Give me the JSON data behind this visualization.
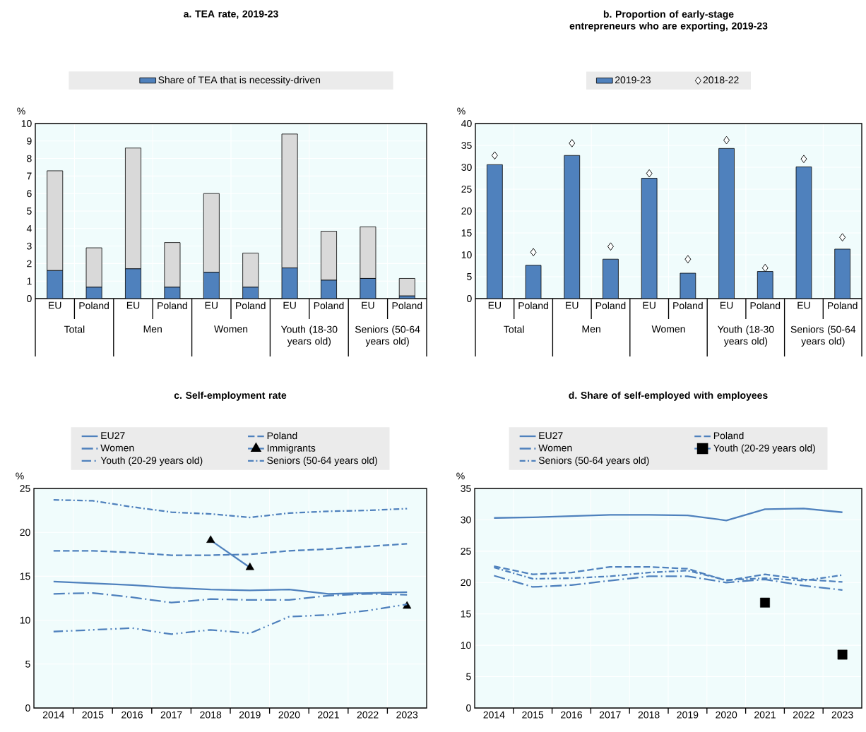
{
  "chart_data": [
    {
      "type": "bar",
      "title": "a. TEA rate, 2019-23",
      "ylabel": "%",
      "stacked": true,
      "legend": "top",
      "grid": true,
      "categories": [
        "EU",
        "Poland",
        "EU",
        "Poland",
        "EU",
        "Poland",
        "EU",
        "Poland",
        "EU",
        "Poland"
      ],
      "annotations": [
        "Total",
        "Men",
        "Women",
        "Youth (18-30 years old)",
        "Seniors (50-64 years old)"
      ],
      "series": [
        {
          "name": "Share of TEA that is necessity-driven",
          "color": "#4f81bd",
          "values": [
            1.6,
            0.65,
            1.7,
            0.65,
            1.5,
            0.65,
            1.75,
            1.05,
            1.15,
            0.15
          ]
        },
        {
          "color": "#d9d9d9",
          "values": [
            5.7,
            2.25,
            6.9,
            2.55,
            4.5,
            1.95,
            7.65,
            2.8,
            2.95,
            1.0
          ]
        }
      ],
      "ylim": [
        0,
        10
      ],
      "yticks": [
        0,
        1,
        2,
        3,
        4,
        5,
        6,
        7,
        8,
        9,
        10
      ]
    },
    {
      "type": "bar",
      "title": "b. Proportion of early-stage entrepreneurs who are exporting, 2019-23",
      "ylabel": "%",
      "legend": "top",
      "grid": true,
      "categories": [
        "EU",
        "Poland",
        "EU",
        "Poland",
        "EU",
        "Poland",
        "EU",
        "Poland",
        "EU",
        "Poland"
      ],
      "annotations": [
        "Total",
        "Men",
        "Women",
        "Youth (18-30 years old)",
        "Seniors (50-64 years old)"
      ],
      "series": [
        {
          "name": "2019-23",
          "color": "#4f81bd",
          "values": [
            30.6,
            7.6,
            32.7,
            9.0,
            27.5,
            5.8,
            34.3,
            6.2,
            30.1,
            11.3
          ]
        },
        {
          "name": "2018-22",
          "type": "scatter",
          "marker": "diamond",
          "color": "#ffffff",
          "values": [
            32.7,
            10.6,
            35.5,
            11.9,
            28.6,
            9.0,
            36.2,
            7.0,
            31.9,
            14.0
          ]
        }
      ],
      "ylim": [
        0,
        40
      ],
      "yticks": [
        0,
        5,
        10,
        15,
        20,
        25,
        30,
        35,
        40
      ]
    },
    {
      "type": "line",
      "title": "c. Self-employment rate",
      "ylabel": "%",
      "legend": "top",
      "grid": true,
      "categories": [
        "2014",
        "2015",
        "2016",
        "2017",
        "2018",
        "2019",
        "2020",
        "2021",
        "2022",
        "2023"
      ],
      "series": [
        {
          "name": "EU27",
          "color": "#4f81bd",
          "line_style": "solid",
          "values": [
            14.4,
            14.2,
            14.0,
            13.7,
            13.5,
            13.4,
            13.5,
            13.0,
            13.1,
            13.2
          ]
        },
        {
          "name": "Poland",
          "color": "#4f81bd",
          "line_style": "dashed",
          "values": [
            17.9,
            17.9,
            17.7,
            17.4,
            17.4,
            17.5,
            17.9,
            18.1,
            18.4,
            18.7
          ]
        },
        {
          "name": "Women",
          "color": "#4f81bd",
          "line_style": "longdashdot",
          "values": [
            13.0,
            13.1,
            12.6,
            12.0,
            12.4,
            12.3,
            12.3,
            12.8,
            13.0,
            12.9
          ]
        },
        {
          "name": "Immigrants",
          "color": "#4f81bd",
          "line_style": "solid",
          "marker": "triangle",
          "colors": [
            null,
            null,
            null,
            null,
            "#000000",
            "#000000",
            null,
            null,
            null,
            "#000000"
          ],
          "values": [
            null,
            null,
            null,
            null,
            19.1,
            16.0,
            null,
            null,
            null,
            11.6
          ]
        },
        {
          "name": "Youth (20-29 years old)",
          "color": "#4f81bd",
          "line_style": "dashdotdot",
          "values": [
            8.7,
            8.9,
            9.1,
            8.4,
            8.9,
            8.5,
            10.4,
            10.6,
            11.1,
            11.8
          ]
        },
        {
          "name": "Seniors (50-64 years old)",
          "color": "#4f81bd",
          "line_style": "dashdot",
          "values": [
            23.7,
            23.6,
            22.9,
            22.3,
            22.1,
            21.7,
            22.2,
            22.4,
            22.5,
            22.7
          ]
        }
      ],
      "ylim": [
        0,
        25
      ],
      "yticks": [
        0,
        5,
        10,
        15,
        20,
        25
      ]
    },
    {
      "type": "line",
      "title": "d. Share of self-employed with employees",
      "ylabel": "%",
      "legend": "top",
      "grid": true,
      "categories": [
        "2014",
        "2015",
        "2016",
        "2017",
        "2018",
        "2019",
        "2020",
        "2021",
        "2022",
        "2023"
      ],
      "series": [
        {
          "name": "EU27",
          "color": "#4f81bd",
          "line_style": "solid",
          "values": [
            30.3,
            30.4,
            30.6,
            30.8,
            30.8,
            30.7,
            29.9,
            31.7,
            31.8,
            31.2
          ]
        },
        {
          "name": "Poland",
          "color": "#4f81bd",
          "line_style": "dashed",
          "values": [
            22.6,
            21.3,
            21.6,
            22.5,
            22.5,
            22.2,
            20.3,
            21.3,
            20.5,
            20.1
          ]
        },
        {
          "name": "Women",
          "color": "#4f81bd",
          "line_style": "longdashdot",
          "values": [
            21.1,
            19.3,
            19.6,
            20.3,
            21.0,
            21.0,
            20.0,
            20.5,
            19.5,
            18.8
          ]
        },
        {
          "name": "Youth (20-29 years old)",
          "color": "#4f81bd",
          "line_style": "solid",
          "marker": "square",
          "colors": [
            null,
            null,
            null,
            null,
            null,
            null,
            null,
            "#000000",
            null,
            "#000000"
          ],
          "values": [
            null,
            null,
            null,
            null,
            null,
            null,
            null,
            16.8,
            null,
            8.5
          ]
        },
        {
          "name": "Seniors (50-64 years old)",
          "color": "#4f81bd",
          "line_style": "dashdot",
          "values": [
            22.4,
            20.6,
            20.7,
            21.0,
            21.6,
            21.9,
            20.4,
            20.7,
            20.3,
            21.2
          ]
        }
      ],
      "ylim": [
        0,
        35
      ],
      "yticks": [
        0,
        5,
        10,
        15,
        20,
        25,
        30,
        35
      ]
    }
  ]
}
